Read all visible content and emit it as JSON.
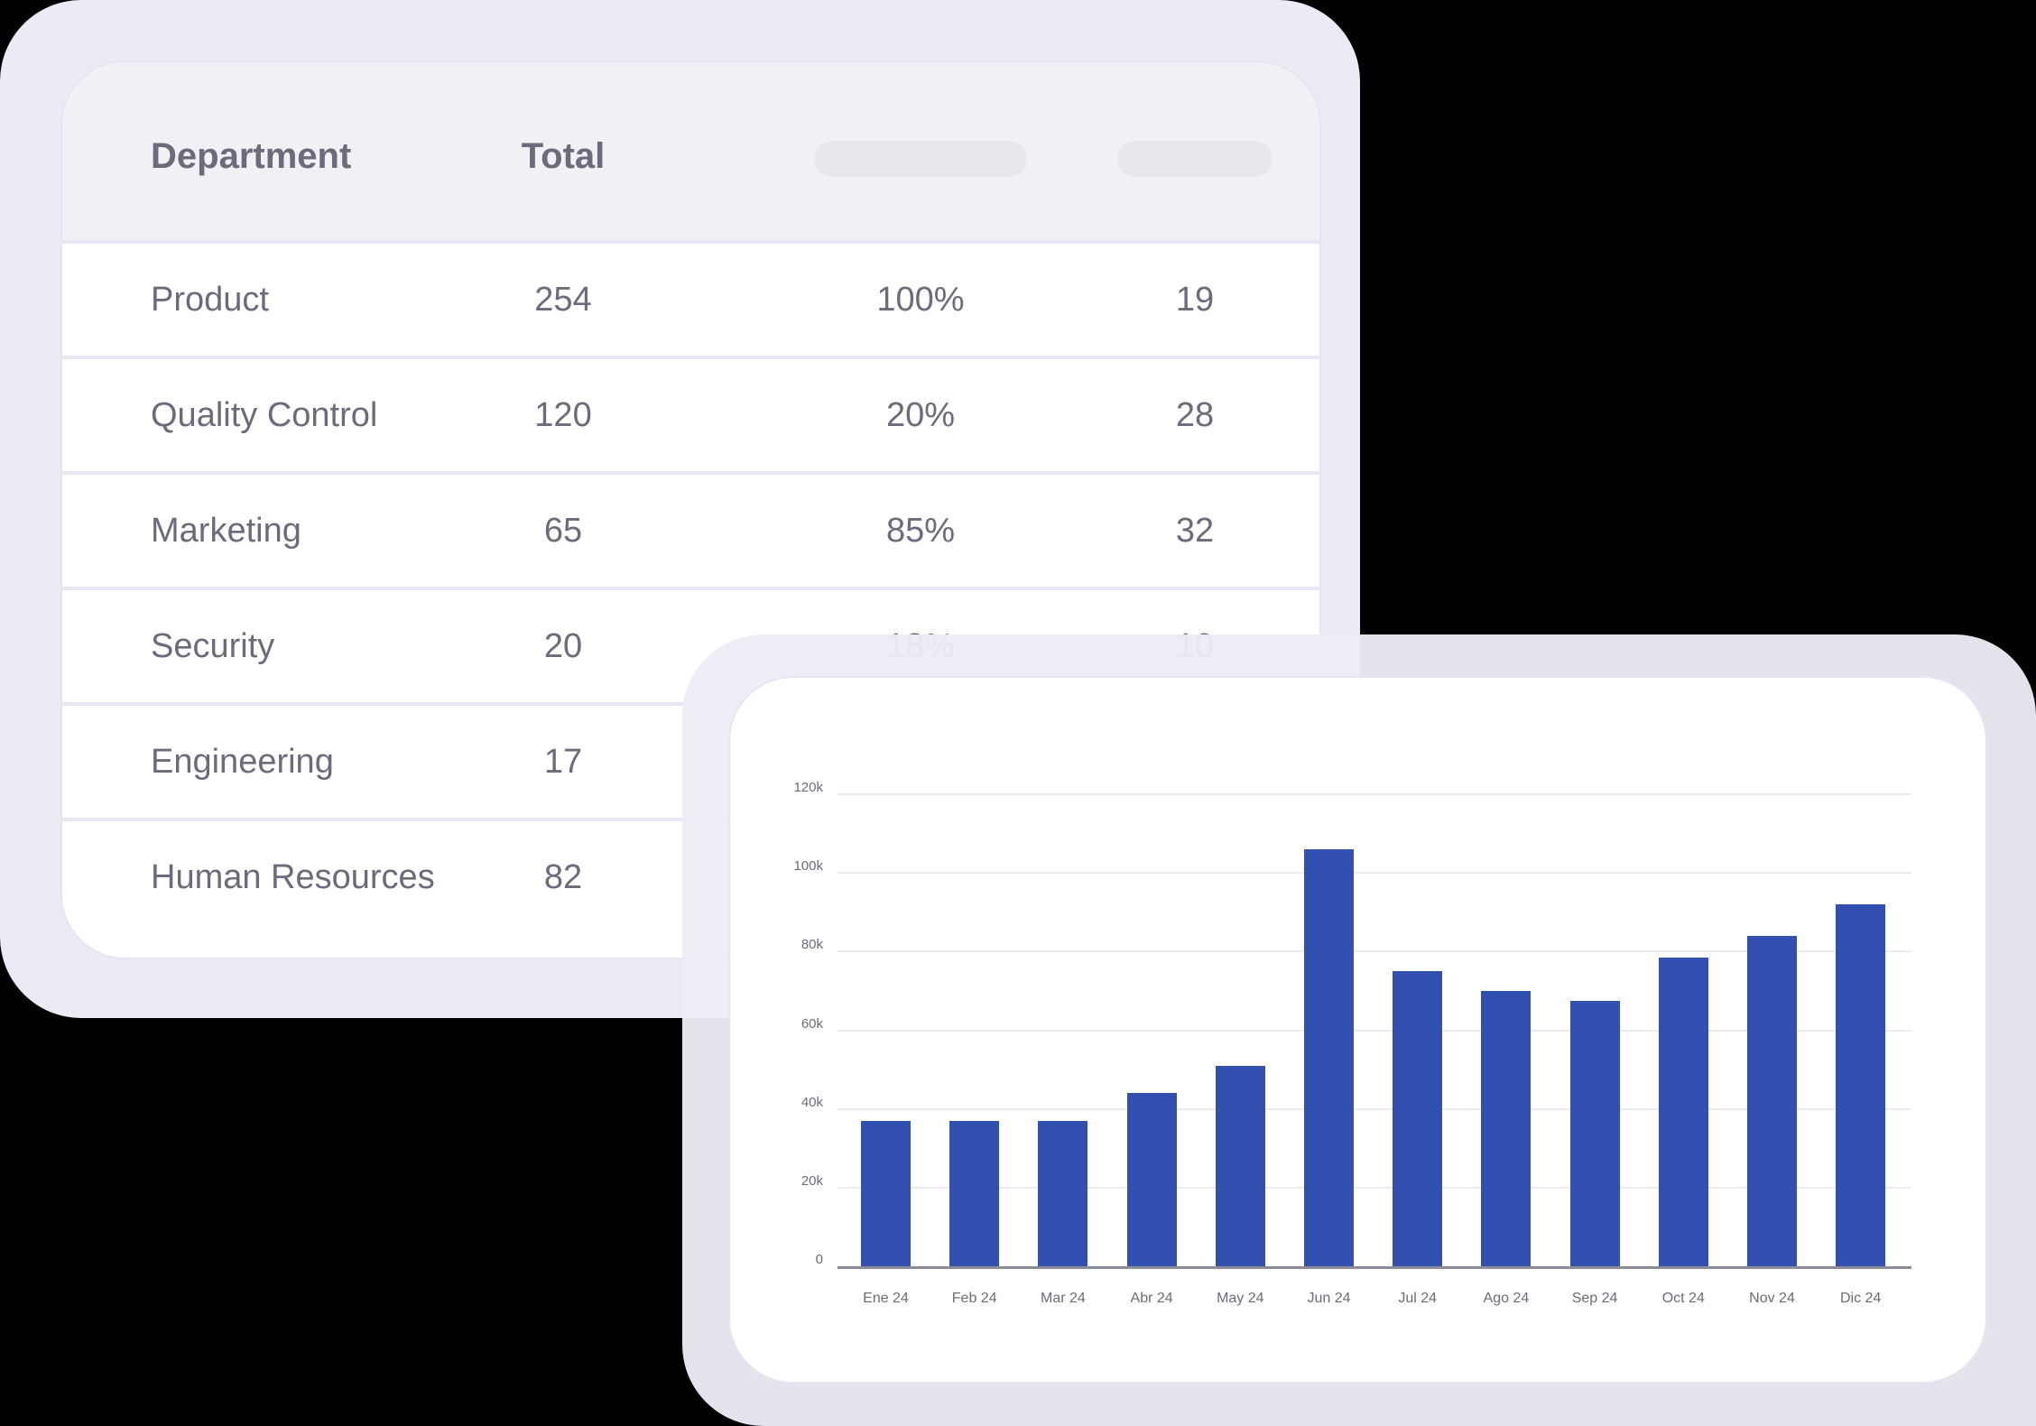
{
  "table": {
    "headers": [
      "Department",
      "Total",
      "",
      ""
    ],
    "rows": [
      {
        "department": "Product",
        "total": "254",
        "percent": "100%",
        "count": "19"
      },
      {
        "department": "Quality Control",
        "total": "120",
        "percent": "20%",
        "count": "28"
      },
      {
        "department": "Marketing",
        "total": "65",
        "percent": "85%",
        "count": "32"
      },
      {
        "department": "Security",
        "total": "20",
        "percent": "18%",
        "count": "10"
      },
      {
        "department": "Engineering",
        "total": "17",
        "percent": "",
        "count": ""
      },
      {
        "department": "Human Resources",
        "total": "82",
        "percent": "",
        "count": ""
      }
    ]
  },
  "colors": {
    "bar": "#3250b0",
    "text": "#6b6b7b",
    "frame": "#ebebf5",
    "header_bg": "#f0f0f5",
    "placeholder_pill": "#e8e8ec"
  },
  "chart_data": {
    "type": "bar",
    "title": "",
    "xlabel": "",
    "ylabel": "",
    "categories": [
      "Ene 24",
      "Feb 24",
      "Mar 24",
      "Abr 24",
      "May 24",
      "Jun 24",
      "Jul 24",
      "Ago 24",
      "Sep 24",
      "Oct 24",
      "Nov 24",
      "Dic 24"
    ],
    "values": [
      37000,
      37000,
      37000,
      44000,
      51000,
      106000,
      75000,
      70000,
      67500,
      78500,
      84000,
      92000
    ],
    "yticks": [
      "0",
      "20k",
      "40k",
      "60k",
      "80k",
      "100k",
      "120k"
    ],
    "ylim": [
      0,
      120000
    ],
    "grid": true,
    "legend": null
  }
}
